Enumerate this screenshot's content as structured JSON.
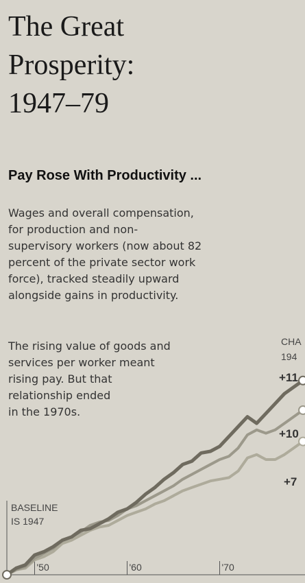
{
  "chart_data": {
    "type": "line",
    "title": [
      "The Great",
      "Prosperity:",
      "1947–79"
    ],
    "subtitle": "Pay Rose With Productivity ...",
    "text_1": [
      "Wages and overall compensation,",
      "for production and non-",
      "supervisory workers (now about 82",
      "percent of the private sector work",
      "force), tracked steadily upward",
      "alongside gains in productivity."
    ],
    "text_2": [
      "The rising value of goods and",
      "services per worker meant",
      "rising pay. But that",
      "relationship ended",
      "in the 1970s."
    ],
    "annotations": [
      "CHA",
      "194",
      "+11",
      "+10",
      "+7"
    ],
    "baseline_note": [
      "BASELINE",
      "IS 1947"
    ],
    "x": [
      1947,
      1948,
      1949,
      1950,
      1951,
      1952,
      1953,
      1954,
      1955,
      1956,
      1957,
      1958,
      1959,
      1960,
      1961,
      1962,
      1963,
      1964,
      1965,
      1966,
      1967,
      1968,
      1969,
      1970,
      1971,
      1972,
      1973,
      1974,
      1975,
      1976,
      1977,
      1978,
      1979
    ],
    "series": [
      {
        "color": "#6f6b5f",
        "values": [
          0,
          4,
          6,
          12,
          14,
          17,
          21,
          23,
          27,
          28,
          31,
          34,
          38,
          40,
          44,
          49,
          53,
          58,
          62,
          67,
          69,
          74,
          75,
          78,
          84,
          90,
          96,
          92,
          98,
          104,
          110,
          114,
          118
        ]
      },
      {
        "color": "#9c998b",
        "values": [
          0,
          3,
          5,
          10,
          13,
          16,
          21,
          23,
          26,
          30,
          32,
          33,
          36,
          40,
          42,
          45,
          48,
          51,
          54,
          58,
          61,
          64,
          67,
          70,
          72,
          77,
          85,
          88,
          86,
          88,
          92,
          96,
          100
        ]
      },
      {
        "color": "#aeab9b",
        "values": [
          0,
          3,
          4,
          9,
          11,
          14,
          19,
          21,
          24,
          27,
          29,
          30,
          33,
          36,
          38,
          40,
          43,
          45,
          48,
          51,
          53,
          55,
          57,
          58,
          59,
          63,
          71,
          73,
          70,
          70,
          73,
          77,
          81
        ]
      }
    ],
    "xlim": [
      1947,
      1979
    ],
    "xticks": [
      {
        "value": 1950,
        "label": "'50"
      },
      {
        "value": 1960,
        "label": "'60"
      },
      {
        "value": 1970,
        "label": "'70"
      }
    ],
    "ylim": [
      0,
      120
    ]
  }
}
